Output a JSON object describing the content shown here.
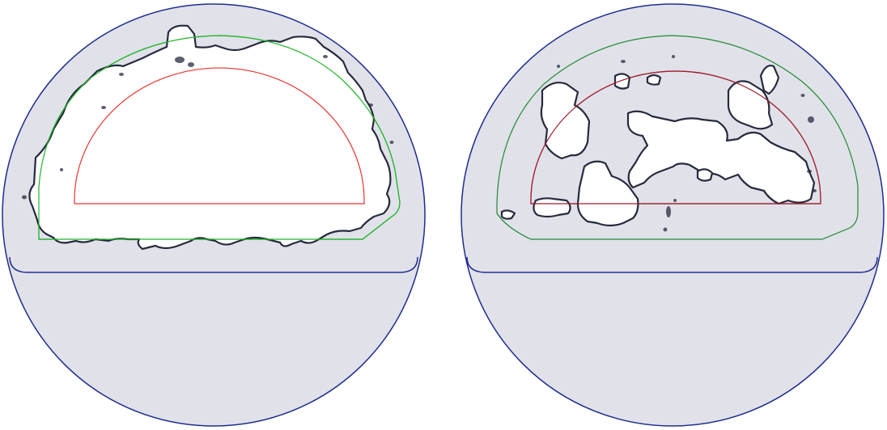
{
  "colors": {
    "background": "#ffffff",
    "domain_fill": "#e1e1ea",
    "domain_outline": "#1f2d8c",
    "void_fill": "#ffffff",
    "void_edge": "#262a3c",
    "inner_contour": "#e8342f",
    "inner_contour_right": "#9e1f2c",
    "outer_contour": "#21b52a",
    "outer_contour_right": "#1f8c2e"
  },
  "panels": [
    {
      "id": "left",
      "pattern": "single-connected-void"
    },
    {
      "id": "right",
      "pattern": "fragmented-voids"
    }
  ]
}
